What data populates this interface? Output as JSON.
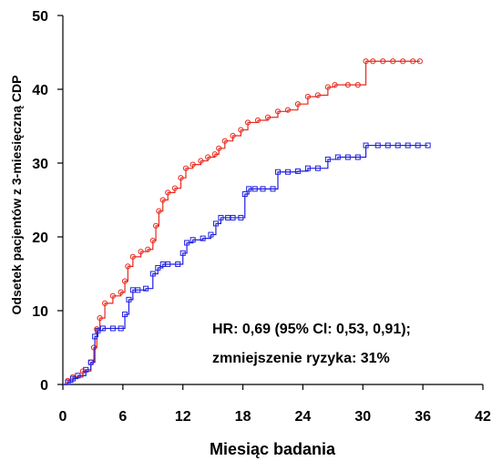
{
  "chart_data": {
    "type": "line",
    "xlabel": "Miesiąc badania",
    "ylabel": "Odsetek pacjentów z 3-miesięczną CDP",
    "xlim": [
      0,
      42
    ],
    "ylim": [
      0,
      50
    ],
    "xticks": [
      0,
      6,
      12,
      18,
      24,
      30,
      36,
      42
    ],
    "yticks": [
      0,
      10,
      20,
      30,
      40,
      50
    ],
    "grid": false,
    "legend": "none",
    "annotations": [
      "HR: 0,69 (95% Cl: 0,53, 0,91);",
      "zmniejszenie ryzyka: 31%"
    ],
    "series": [
      {
        "color": "#e8291c",
        "marker": "circle",
        "x": [
          0,
          0.5,
          1,
          2,
          2.8,
          3.1,
          3.4,
          3.7,
          4.2,
          5,
          5.8,
          6.2,
          6.5,
          7,
          7.8,
          8.5,
          9,
          9.3,
          9.6,
          10,
          10.5,
          11.2,
          11.8,
          12.3,
          13,
          13.8,
          14.5,
          15.2,
          15.6,
          16.2,
          17,
          17.8,
          18.5,
          19.5,
          20.5,
          21.5,
          22.5,
          23.5,
          24.5,
          25.5,
          26.5,
          27.2,
          28.5,
          29.5,
          30.3,
          31,
          32,
          33,
          34,
          35,
          35.7
        ],
        "y": [
          0,
          0.5,
          1,
          1.8,
          3,
          5,
          7.5,
          9,
          11,
          12,
          12.5,
          14,
          16,
          17.3,
          18,
          18.3,
          19.5,
          21.5,
          23.5,
          25,
          26,
          26.6,
          28,
          29.3,
          29.8,
          30.3,
          30.8,
          31.2,
          32,
          33,
          33.7,
          34.5,
          35.5,
          35.8,
          36.2,
          37,
          37.2,
          38,
          39,
          39.2,
          40.3,
          40.6,
          40.6,
          40.6,
          43.8,
          43.8,
          43.8,
          43.8,
          43.8,
          43.8,
          43.8
        ]
      },
      {
        "color": "#1f1fe0",
        "marker": "square",
        "x": [
          0,
          0.5,
          1,
          1.5,
          2.3,
          2.8,
          3.2,
          3.5,
          4,
          5,
          5.8,
          6.2,
          6.6,
          7,
          7.5,
          8.3,
          9,
          9.5,
          10,
          10.5,
          11.5,
          12,
          12.4,
          13,
          14,
          14.8,
          15.3,
          15.8,
          16.5,
          17,
          17.8,
          18.2,
          18.6,
          19.2,
          20,
          21,
          21.5,
          22.5,
          23.5,
          24.5,
          25.5,
          26.5,
          27.5,
          28.5,
          29.5,
          30.3,
          31.5,
          32.5,
          33.5,
          34.5,
          35.5,
          36.5
        ],
        "y": [
          0,
          0.3,
          0.8,
          1.2,
          2,
          3,
          6.5,
          7.3,
          7.6,
          7.6,
          7.6,
          9.5,
          11.5,
          12.8,
          12.8,
          13,
          15,
          15.8,
          16.3,
          16.3,
          16.3,
          17.8,
          19.2,
          19.6,
          19.8,
          20.3,
          21.8,
          22.6,
          22.6,
          22.6,
          22.6,
          25.8,
          26.5,
          26.5,
          26.5,
          26.5,
          28.8,
          28.8,
          28.9,
          29.3,
          29.3,
          30.5,
          30.8,
          30.8,
          30.8,
          32.4,
          32.4,
          32.4,
          32.4,
          32.4,
          32.4,
          32.4
        ]
      }
    ]
  }
}
